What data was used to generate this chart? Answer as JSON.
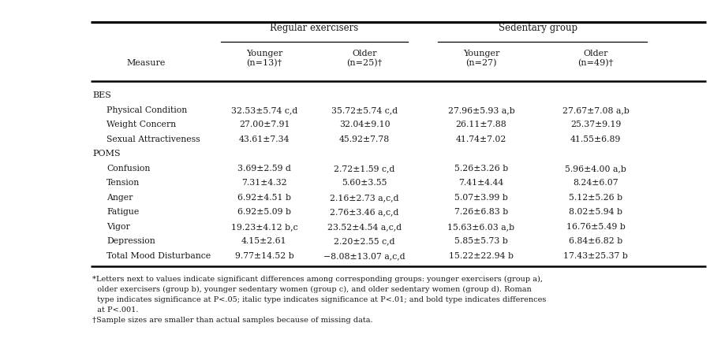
{
  "bg_color": "#ffffff",
  "text_color": "#1a1a1a",
  "line_color": "#000000",
  "col_headers_sub": [
    "Measure",
    "Younger\n(n=13)†",
    "Older\n(n=25)†",
    "Younger\n(n=27)",
    "Older\n(n=49)†"
  ],
  "group_headers": [
    "Regular exercisers",
    "Sedentary group"
  ],
  "sections": [
    {
      "name": "BES",
      "rows": [
        {
          "label": "Physical Condition",
          "v": [
            "32.53±5.74 c,d",
            "35.72±5.74 c,d",
            "27.96±5.93 a,b",
            "27.67±7.08 a,b"
          ]
        },
        {
          "label": "Weight Concern",
          "v": [
            "27.00±7.91",
            "32.04±9.10",
            "26.11±7.88",
            "25.37±9.19"
          ]
        },
        {
          "label": "Sexual Attractiveness",
          "v": [
            "43.61±7.34",
            "45.92±7.78",
            "41.74±7.02",
            "41.55±6.89"
          ]
        }
      ]
    },
    {
      "name": "POMS",
      "rows": [
        {
          "label": "Confusion",
          "v": [
            "3.69±2.59 d",
            "2.72±1.59 c,d",
            "5.26±3.26 b",
            "5.96±4.00 a,b"
          ]
        },
        {
          "label": "Tension",
          "v": [
            "7.31±4.32",
            "5.60±3.55",
            "7.41±4.44",
            "8.24±6.07"
          ]
        },
        {
          "label": "Anger",
          "v": [
            "6.92±4.51 b",
            "2.16±2.73 a,c,d",
            "5.07±3.99 b",
            "5.12±5.26 b"
          ]
        },
        {
          "label": "Fatigue",
          "v": [
            "6.92±5.09 b",
            "2.76±3.46 a,c,d",
            "7.26±6.83 b",
            "8.02±5.94 b"
          ]
        },
        {
          "label": "Vigor",
          "v": [
            "19.23±4.12 b,c",
            "23.52±4.54 a,c,d",
            "15.63±6.03 a,b",
            "16.76±5.49 b"
          ]
        },
        {
          "label": "Depression",
          "v": [
            "4.15±2.61",
            "2.20±2.55 c,d",
            "5.85±5.73 b",
            "6.84±6.82 b"
          ]
        },
        {
          "label": "Total Mood Disturbance",
          "v": [
            "9.77±14.52 b",
            "−8.08±13.07 a,c,d",
            "15.22±22.94 b",
            "17.43±25.37 b"
          ]
        }
      ]
    }
  ],
  "footnotes": [
    "*Letters next to values indicate significant differences among corresponding groups: younger exercisers (group a),",
    "  older exercisers (group b), younger sedentary women (group c), and older sedentary women (group d). Roman",
    "  type indicates significance at P<.05; italic type indicates significance at P<.01; and bold type indicates differences",
    "  at P<.001.",
    "†Sample sizes are smaller than actual samples because of missing data."
  ]
}
